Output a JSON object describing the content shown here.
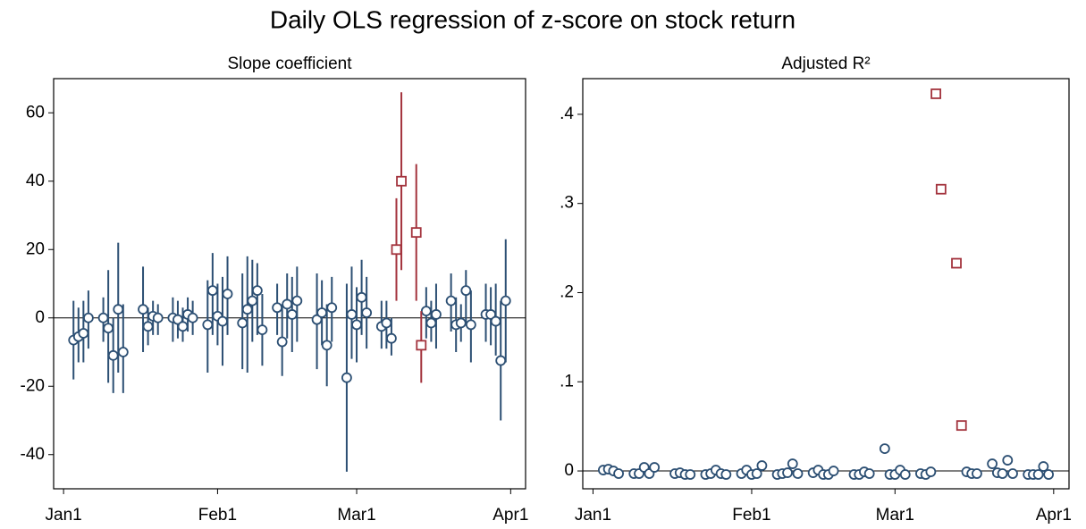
{
  "title": "Daily OLS regression of z-score on stock return",
  "chart_data": [
    {
      "type": "scatter",
      "title": "Slope coefficient",
      "xlim": [
        -2,
        93
      ],
      "ylim": [
        -50,
        70
      ],
      "xticks": [
        {
          "value": 0,
          "label": "Jan1"
        },
        {
          "value": 31,
          "label": "Feb1"
        },
        {
          "value": 59,
          "label": "Mar1"
        },
        {
          "value": 90,
          "label": "Apr1"
        }
      ],
      "yticks": [
        -40,
        -20,
        0,
        20,
        40,
        60
      ],
      "reference_line": 0,
      "series": [
        {
          "color": "#2c4f73",
          "marker": "circle",
          "x": [
            2,
            3,
            4,
            5,
            8,
            9,
            10,
            11,
            12,
            16,
            17,
            18,
            19,
            22,
            23,
            24,
            25,
            26,
            29,
            30,
            31,
            32,
            33,
            36,
            37,
            38,
            39,
            40,
            43,
            44,
            45,
            46,
            47,
            51,
            52,
            53,
            54,
            57,
            58,
            59,
            60,
            61,
            64,
            65,
            66,
            73,
            74,
            75,
            78,
            79,
            80,
            81,
            82,
            85,
            86,
            87,
            88,
            89
          ],
          "values": [
            -6.5,
            -5.5,
            -4.5,
            0,
            0,
            -3,
            -11,
            2.5,
            -10,
            2.5,
            -2.5,
            0.5,
            0,
            0,
            -0.5,
            -2.5,
            1,
            0,
            -2,
            8,
            0.5,
            -1,
            7,
            -1.5,
            2.5,
            5,
            8,
            -3.5,
            3,
            -7,
            4,
            1,
            5,
            -0.5,
            1.5,
            -8,
            3,
            -17.5,
            1,
            -2,
            6,
            1.5,
            -2.5,
            -1.5,
            -6,
            2,
            -1.5,
            1,
            5,
            -2,
            -1.5,
            8,
            -2,
            1,
            1,
            -1,
            -12.5,
            5
          ],
          "lower": [
            -18,
            -13,
            -13,
            -9,
            -7,
            -19,
            -22,
            -16,
            -22,
            -10,
            -8,
            -5,
            -5,
            -7,
            -6,
            -7,
            -4,
            -5,
            -16,
            -5,
            -8,
            -14,
            -5,
            -15,
            -16,
            -7,
            -5,
            -14,
            -5,
            -17,
            -6,
            -10,
            -7,
            -15,
            -8,
            -20,
            -7,
            -45,
            -12,
            -13,
            -5,
            -9,
            -9,
            -9,
            -11,
            -6,
            -7,
            -9,
            -4,
            -10,
            -7,
            -2,
            -13,
            -7,
            -8,
            -11,
            -30,
            -13
          ],
          "upper": [
            5,
            3,
            5,
            8,
            6,
            14,
            0,
            22,
            4,
            15,
            3,
            5,
            4,
            6,
            5,
            3,
            6,
            5,
            11,
            19,
            10,
            12,
            18,
            13,
            18,
            17,
            16,
            7,
            10,
            4,
            13,
            12,
            15,
            13,
            11,
            4,
            12,
            10,
            15,
            9,
            17,
            12,
            5,
            5,
            0,
            9,
            5,
            10,
            13,
            6,
            4,
            14,
            8,
            10,
            9,
            10,
            5,
            23
          ]
        },
        {
          "color": "#a3333d",
          "marker": "square",
          "x": [
            67,
            68,
            71,
            72
          ],
          "values": [
            20,
            40,
            25,
            -8
          ],
          "lower": [
            5,
            14,
            5,
            -19
          ],
          "upper": [
            35,
            66,
            45,
            2
          ]
        }
      ]
    },
    {
      "type": "scatter",
      "title": "Adjusted R²",
      "xlim": [
        -2,
        93
      ],
      "ylim": [
        -0.02,
        0.44
      ],
      "xticks": [
        {
          "value": 0,
          "label": "Jan1"
        },
        {
          "value": 31,
          "label": "Feb1"
        },
        {
          "value": 59,
          "label": "Mar1"
        },
        {
          "value": 90,
          "label": "Apr1"
        }
      ],
      "yticks": [
        0,
        {
          "value": 0.1,
          "label": ".1"
        },
        {
          "value": 0.2,
          "label": ".2"
        },
        {
          "value": 0.3,
          "label": ".3"
        },
        {
          "value": 0.4,
          "label": ".4"
        }
      ],
      "reference_line": 0,
      "series": [
        {
          "color": "#2c4f73",
          "marker": "circle",
          "x": [
            2,
            3,
            4,
            5,
            8,
            9,
            10,
            11,
            12,
            16,
            17,
            18,
            19,
            22,
            23,
            24,
            25,
            26,
            29,
            30,
            31,
            32,
            33,
            36,
            37,
            38,
            39,
            40,
            43,
            44,
            45,
            46,
            47,
            51,
            52,
            53,
            54,
            57,
            58,
            59,
            60,
            61,
            64,
            65,
            66,
            73,
            74,
            75,
            78,
            79,
            80,
            81,
            82,
            85,
            86,
            87,
            88,
            89
          ],
          "values": [
            0.001,
            0.002,
            0,
            -0.003,
            -0.003,
            -0.003,
            0.004,
            -0.003,
            0.004,
            -0.003,
            -0.002,
            -0.004,
            -0.004,
            -0.004,
            -0.003,
            0.001,
            -0.003,
            -0.004,
            -0.003,
            0.001,
            -0.004,
            -0.003,
            0.006,
            -0.004,
            -0.003,
            -0.002,
            0.008,
            -0.003,
            -0.002,
            0.001,
            -0.004,
            -0.004,
            0,
            -0.004,
            -0.004,
            -0.001,
            -0.003,
            0.025,
            -0.004,
            -0.004,
            0.001,
            -0.004,
            -0.003,
            -0.004,
            -0.001,
            -0.001,
            -0.003,
            -0.003,
            0.008,
            -0.002,
            -0.003,
            0.012,
            -0.003,
            -0.004,
            -0.004,
            -0.004,
            0.005,
            -0.004
          ]
        },
        {
          "color": "#a3333d",
          "marker": "square",
          "x": [
            67,
            68,
            71,
            72
          ],
          "values": [
            0.423,
            0.316,
            0.233,
            0.051
          ]
        }
      ]
    }
  ]
}
